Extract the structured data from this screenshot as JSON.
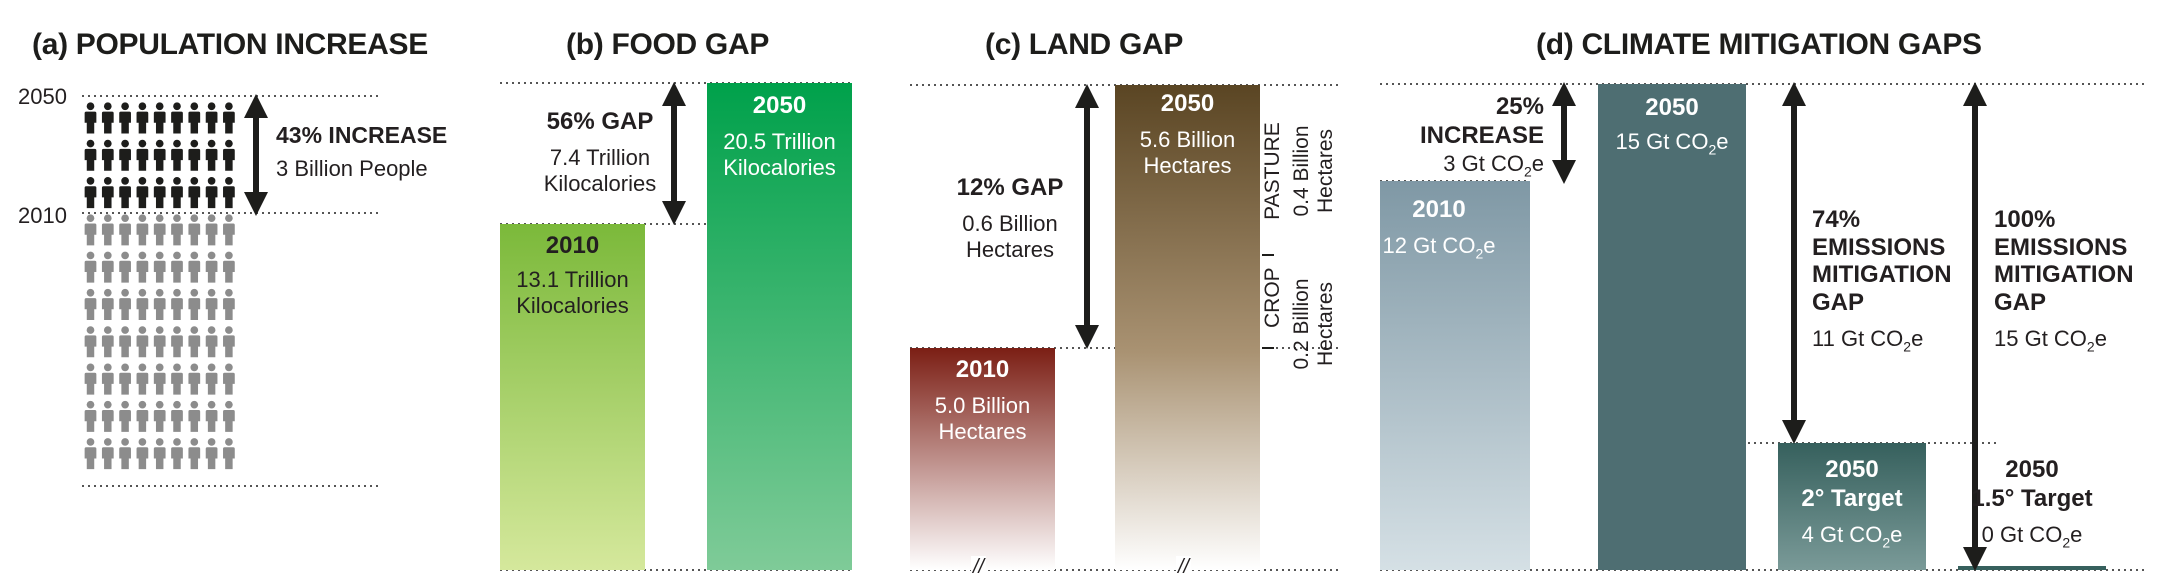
{
  "panels": {
    "a": {
      "title": "(a) POPULATION INCREASE",
      "year_top": "2050",
      "year_mid": "2010",
      "label": "43% INCREASE",
      "value": "3 Billion People"
    },
    "b": {
      "title": "(b) FOOD GAP",
      "gap_label": "56% GAP",
      "gap_value1": "7.4 Trillion",
      "gap_value2": "Kilocalories",
      "bar2010_year": "2010",
      "bar2010_v1": "13.1 Trillion",
      "bar2010_v2": "Kilocalories",
      "bar2050_year": "2050",
      "bar2050_v1": "20.5 Trillion",
      "bar2050_v2": "Kilocalories"
    },
    "c": {
      "title": "(c) LAND GAP",
      "gap_label": "12% GAP",
      "gap_value1": "0.6 Billion",
      "gap_value2": "Hectares",
      "bar2010_year": "2010",
      "bar2010_v1": "5.0 Billion",
      "bar2010_v2": "Hectares",
      "bar2050_year": "2050",
      "bar2050_v1": "5.6 Billion",
      "bar2050_v2": "Hectares",
      "pasture_label": "PASTURE",
      "pasture_v1": "0.4 Billion",
      "pasture_v2": "Hectares",
      "crop_label": "CROP",
      "crop_v1": "0.2 Billion",
      "crop_v2": "Hectares",
      "break_mark": "//"
    },
    "d": {
      "title": "(d) CLIMATE MITIGATION GAPS",
      "inc_l1": "25%",
      "inc_l2": "INCREASE",
      "inc_val": "3 Gt CO",
      "bar2010_year": "2010",
      "bar2010_val": "12 Gt CO",
      "bar2050_year": "2050",
      "bar2050_val": "15 Gt CO",
      "g74_l1": "74%",
      "g74_l2": "EMISSIONS",
      "g74_l3": "MITIGATION",
      "g74_l4": "GAP",
      "g74_val": "11 Gt CO",
      "g100_l1": "100%",
      "g100_l2": "EMISSIONS",
      "g100_l3": "MITIGATION",
      "g100_l4": "GAP",
      "g100_val": "15 Gt CO",
      "t2_year": "2050",
      "t2_name": "2° Target",
      "t2_val": "4 Gt CO",
      "t15_year": "2050",
      "t15_name": "1.5° Target",
      "t15_val": "0 Gt CO",
      "sub": "2",
      "suffix": "e"
    }
  },
  "chart_data": [
    {
      "type": "bar",
      "title": "(a) POPULATION INCREASE",
      "categories": [
        "2010",
        "2050"
      ],
      "annotations": [
        "43% INCREASE",
        "3 Billion People"
      ]
    },
    {
      "type": "bar",
      "title": "(b) FOOD GAP",
      "categories": [
        "2010",
        "2050"
      ],
      "values": [
        13.1,
        20.5
      ],
      "annotations": [
        "56% GAP",
        "7.4 Trillion Kilocalories"
      ]
    },
    {
      "type": "bar",
      "title": "(c) LAND GAP",
      "categories": [
        "2010",
        "2050"
      ],
      "values": [
        5.0,
        5.6
      ],
      "annotations": [
        "12% GAP",
        "0.6 Billion Hectares",
        "PASTURE 0.4 Billion Hectares",
        "CROP 0.2 Billion Hectares"
      ]
    },
    {
      "type": "bar",
      "title": "(d) CLIMATE MITIGATION GAPS",
      "categories": [
        "2010",
        "2050",
        "2050 2° Target",
        "2050 1.5° Target"
      ],
      "values": [
        12,
        15,
        4,
        0
      ],
      "annotations": [
        "25% INCREASE 3 Gt CO2e",
        "74% EMISSIONS MITIGATION GAP 11 Gt CO2e",
        "100% EMISSIONS MITIGATION GAP 15 Gt CO2e"
      ]
    }
  ],
  "colors": {
    "food2010_top": "#7bb93a",
    "food2010_bottom": "#d5e89c",
    "food2050_top": "#00a14b",
    "food2050_bottom": "#7fcb98",
    "land2010_top": "#7b1e14",
    "land2010_bottom": "#ffffff",
    "land2050_top": "#5a4523",
    "land2050_bottom": "#ffffff",
    "clim2010_top": "#7f98a5",
    "clim2010_bottom": "#d5e0e5",
    "clim2050": "#4e6e72",
    "target_top": "#36605d",
    "target_bottom": "#7a9a98",
    "people_dark": "#1d1d1b",
    "people_gray": "#8c8c8c"
  }
}
